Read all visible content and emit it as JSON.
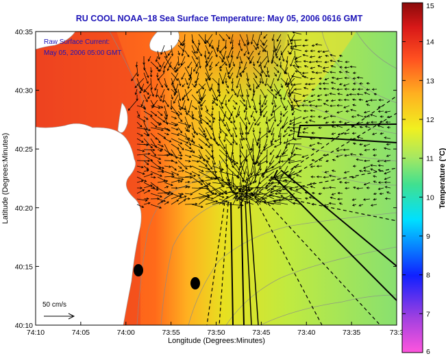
{
  "title": "RU COOL  NOAA–18  Sea Surface Temperature:  May 05, 2006 0616 GMT",
  "annotation": {
    "line1": "Raw Surface Current:",
    "line2": "May 05, 2006 05:00 GMT"
  },
  "scale_label": "50 cm/s",
  "axes": {
    "xlabel": "Longitude (Degrees:Minutes)",
    "ylabel": "Latitude (Degrees:Minutes)",
    "x_ticks": [
      "74:10",
      "74:05",
      "74:00",
      "73:55",
      "73:50",
      "73:45",
      "73:40",
      "73:35",
      "73:3"
    ],
    "y_ticks": [
      "40:35",
      "40:30",
      "40:25",
      "40:20",
      "40:15",
      "40:10"
    ]
  },
  "colorbar": {
    "label": "Temperature (°C)",
    "ticks": [
      "15",
      "14",
      "13",
      "12",
      "11",
      "10",
      "9",
      "8",
      "7",
      "6"
    ],
    "min": 6,
    "max": 15,
    "colors": [
      "#ff55dd",
      "#a040e0",
      "#1020ff",
      "#00e0ff",
      "#50e080",
      "#a8e860",
      "#f0f020",
      "#ffb020",
      "#ff5020",
      "#d81818",
      "#8a0a0a"
    ]
  }
}
